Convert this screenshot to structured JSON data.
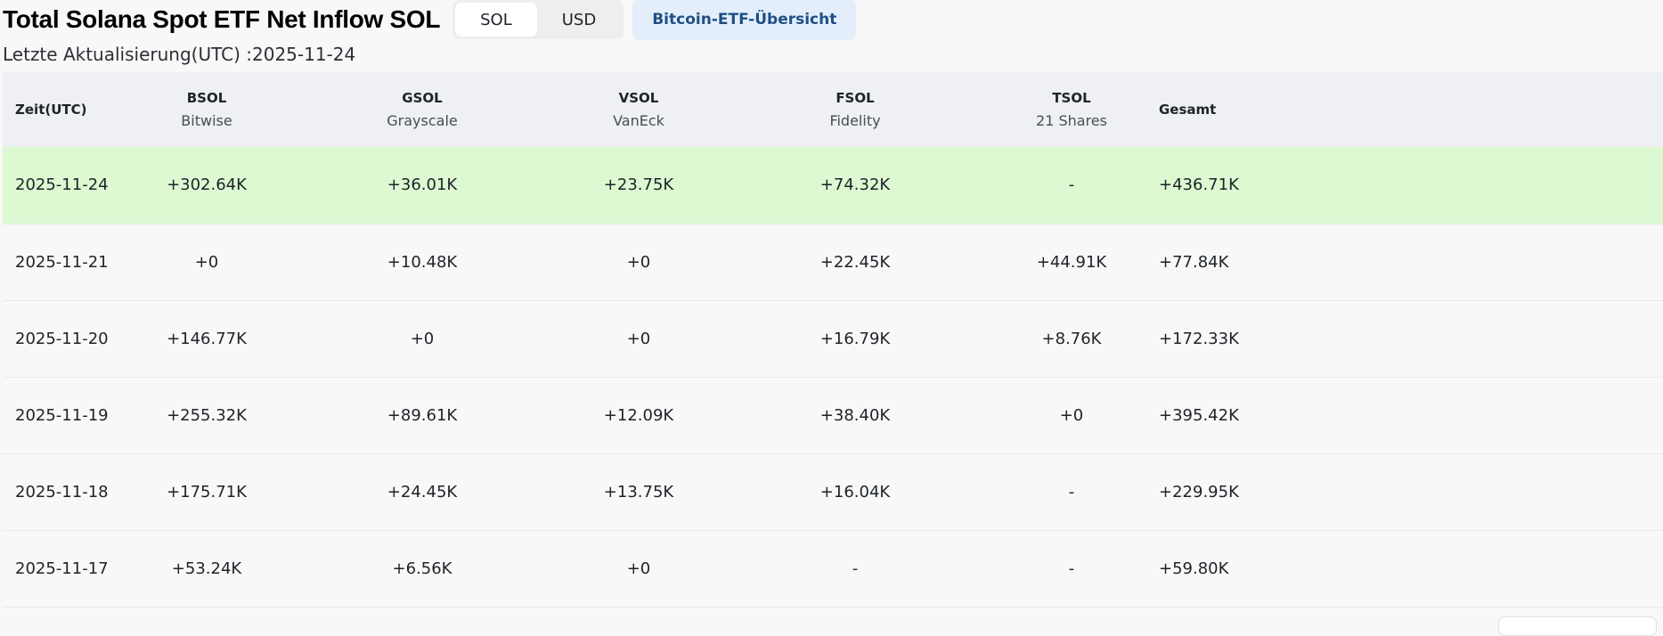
{
  "header": {
    "title": "Total Solana Spot ETF Net Inflow SOL",
    "toggle": [
      {
        "label": "SOL",
        "active": true
      },
      {
        "label": "USD",
        "active": false
      }
    ],
    "btc_link": "Bitcoin-ETF-Übersicht"
  },
  "subtitle": "Letzte Aktualisierung(UTC) :2025-11-24",
  "table": {
    "columns": [
      {
        "ticker": "Zeit(UTC)",
        "issuer": ""
      },
      {
        "ticker": "BSOL",
        "issuer": "Bitwise"
      },
      {
        "ticker": "GSOL",
        "issuer": "Grayscale"
      },
      {
        "ticker": "VSOL",
        "issuer": "VanEck"
      },
      {
        "ticker": "FSOL",
        "issuer": "Fidelity"
      },
      {
        "ticker": "TSOL",
        "issuer": "21 Shares"
      },
      {
        "ticker": "Gesamt",
        "issuer": ""
      }
    ],
    "rows": [
      {
        "date": "2025-11-24",
        "cells": [
          "+302.64K",
          "+36.01K",
          "+23.75K",
          "+74.32K",
          "-",
          "+436.71K"
        ],
        "highlight": true
      },
      {
        "date": "2025-11-21",
        "cells": [
          "+0",
          "+10.48K",
          "+0",
          "+22.45K",
          "+44.91K",
          "+77.84K"
        ]
      },
      {
        "date": "2025-11-20",
        "cells": [
          "+146.77K",
          "+0",
          "+0",
          "+16.79K",
          "+8.76K",
          "+172.33K"
        ]
      },
      {
        "date": "2025-11-19",
        "cells": [
          "+255.32K",
          "+89.61K",
          "+12.09K",
          "+38.40K",
          "+0",
          "+395.42K"
        ]
      },
      {
        "date": "2025-11-18",
        "cells": [
          "+175.71K",
          "+24.45K",
          "+13.75K",
          "+16.04K",
          "-",
          "+229.95K"
        ]
      },
      {
        "date": "2025-11-17",
        "cells": [
          "+53.24K",
          "+6.56K",
          "+0",
          "-",
          "-",
          "+59.80K"
        ]
      }
    ]
  },
  "colors": {
    "positive": "#23a47e",
    "zero": "#e0303e",
    "highlight_row": "#dcf9d1",
    "header_row": "#eef0f3"
  }
}
